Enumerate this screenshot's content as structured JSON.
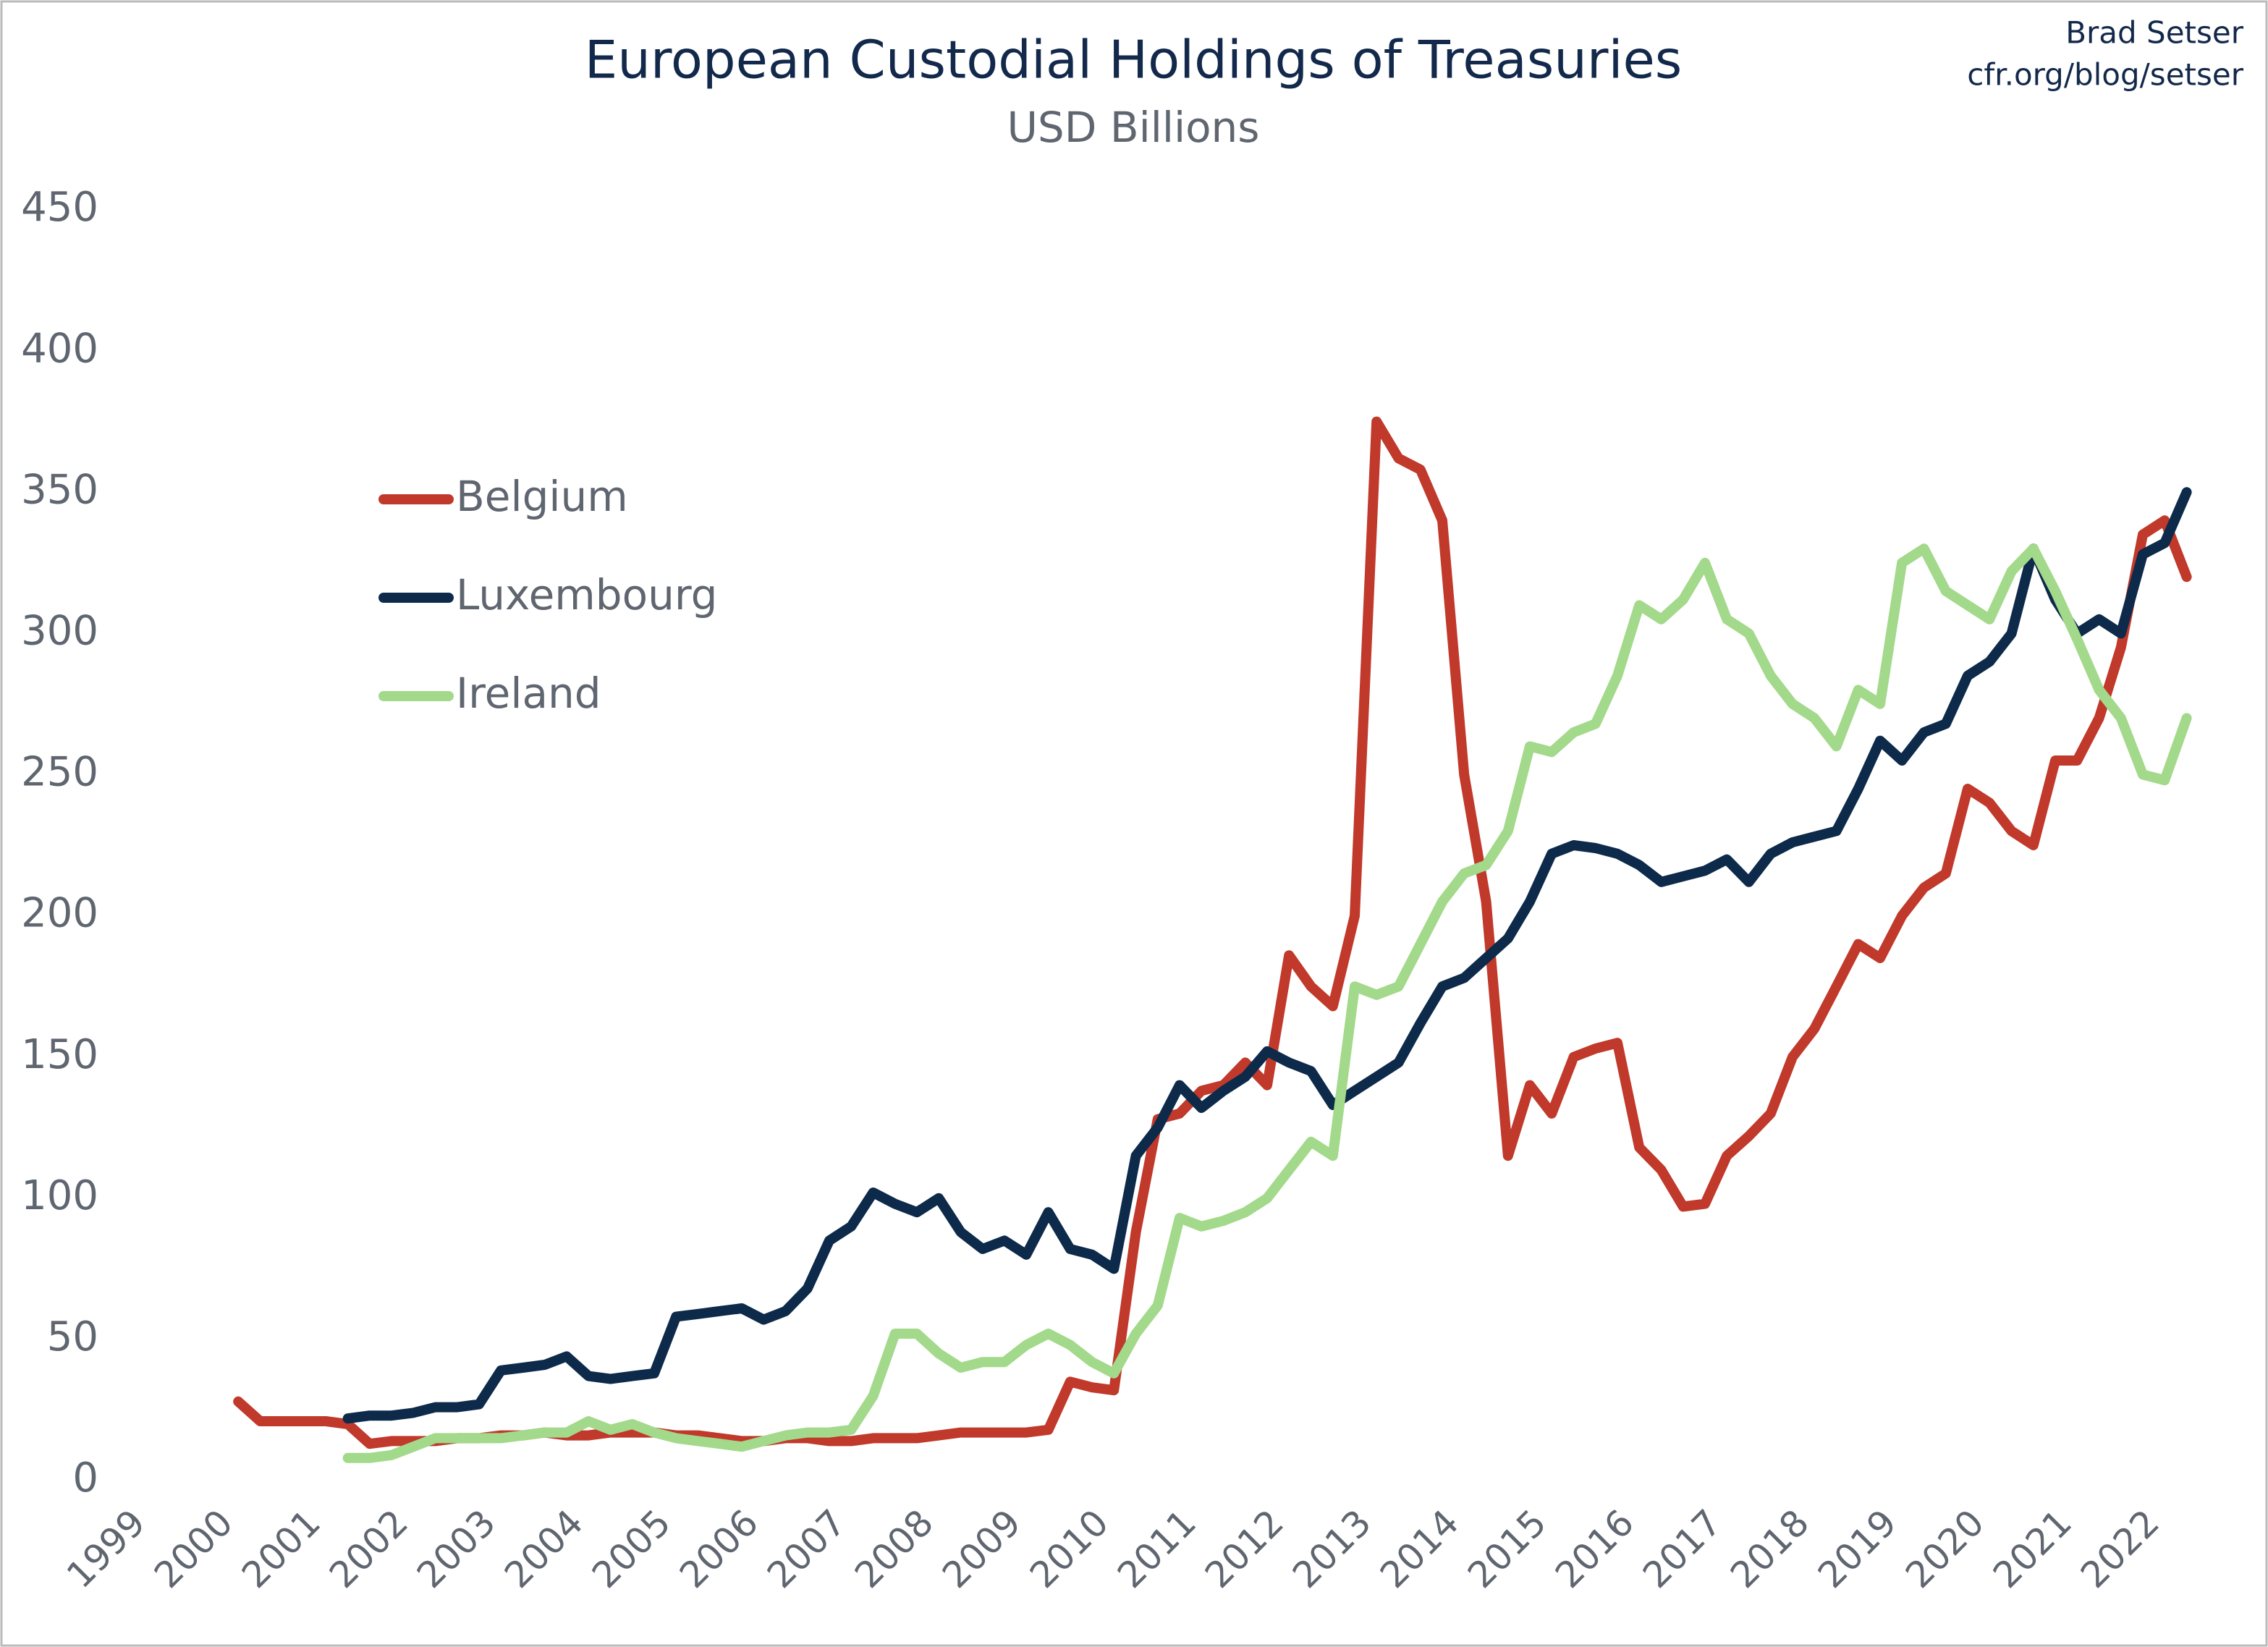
{
  "chart_data": {
    "type": "line",
    "title": "European Custodial Holdings of Treasuries",
    "subtitle": "USD Billions",
    "source": [
      "Brad Setser",
      "cfr.org/blog/setser"
    ],
    "x": [
      2000,
      2000.25,
      2000.5,
      2000.75,
      2001,
      2001.25,
      2001.5,
      2001.75,
      2002,
      2002.25,
      2002.5,
      2002.75,
      2003,
      2003.25,
      2003.5,
      2003.75,
      2004,
      2004.25,
      2004.5,
      2004.75,
      2005,
      2005.25,
      2005.5,
      2005.75,
      2006,
      2006.25,
      2006.5,
      2006.75,
      2007,
      2007.25,
      2007.5,
      2007.75,
      2008,
      2008.25,
      2008.5,
      2008.75,
      2009,
      2009.25,
      2009.5,
      2009.75,
      2010,
      2010.25,
      2010.5,
      2010.75,
      2011,
      2011.25,
      2011.5,
      2011.75,
      2012,
      2012.25,
      2012.5,
      2012.75,
      2013,
      2013.25,
      2013.5,
      2013.75,
      2014,
      2014.25,
      2014.5,
      2014.75,
      2015,
      2015.25,
      2015.5,
      2015.75,
      2016,
      2016.25,
      2016.5,
      2016.75,
      2017,
      2017.25,
      2017.5,
      2017.75,
      2018,
      2018.25,
      2018.5,
      2018.75,
      2019,
      2019.25,
      2019.5,
      2019.75,
      2020,
      2020.25,
      2020.5,
      2020.75,
      2021,
      2021.25,
      2021.5,
      2021.75,
      2022,
      2022.25,
      2022.5
    ],
    "series": [
      {
        "name": "Belgium",
        "color": "#c0392b",
        "values": [
          null,
          28,
          21,
          21,
          21,
          21,
          20,
          13,
          14,
          14,
          14,
          15,
          15,
          16,
          16,
          17,
          16,
          16,
          17,
          17,
          17,
          16,
          16,
          15,
          14,
          14,
          15,
          15,
          14,
          14,
          15,
          15,
          15,
          16,
          17,
          17,
          17,
          17,
          18,
          35,
          33,
          32,
          88,
          128,
          130,
          138,
          140,
          148,
          140,
          186,
          175,
          168,
          200,
          375,
          362,
          358,
          340,
          250,
          205,
          115,
          140,
          130,
          150,
          153,
          155,
          118,
          110,
          97,
          98,
          115,
          122,
          130,
          150,
          160,
          175,
          190,
          185,
          200,
          210,
          215,
          245,
          240,
          230,
          225,
          255,
          255,
          270,
          295,
          335,
          340,
          320
        ]
      },
      {
        "name": "Luxembourg",
        "color": "#0d2a4a",
        "values": [
          null,
          null,
          null,
          null,
          null,
          null,
          22,
          23,
          23,
          24,
          26,
          26,
          27,
          39,
          40,
          41,
          44,
          37,
          36,
          37,
          38,
          58,
          59,
          60,
          61,
          57,
          60,
          68,
          85,
          90,
          102,
          98,
          95,
          100,
          88,
          82,
          85,
          80,
          95,
          82,
          80,
          75,
          115,
          125,
          140,
          132,
          138,
          143,
          152,
          148,
          145,
          133,
          138,
          143,
          148,
          162,
          175,
          178,
          185,
          192,
          205,
          222,
          225,
          224,
          222,
          218,
          212,
          214,
          216,
          220,
          212,
          222,
          226,
          228,
          230,
          245,
          262,
          255,
          265,
          268,
          285,
          290,
          300,
          330,
          312,
          300,
          305,
          300,
          328,
          332,
          350
        ]
      },
      {
        "name": "Ireland",
        "color": "#a3d98a",
        "values": [
          null,
          null,
          null,
          null,
          null,
          null,
          8,
          8,
          9,
          12,
          15,
          15,
          15,
          15,
          16,
          17,
          17,
          21,
          18,
          20,
          17,
          15,
          14,
          13,
          12,
          14,
          16,
          17,
          17,
          18,
          30,
          52,
          52,
          45,
          40,
          42,
          42,
          48,
          52,
          48,
          42,
          38,
          52,
          62,
          93,
          90,
          92,
          95,
          100,
          110,
          120,
          115,
          175,
          172,
          175,
          190,
          205,
          215,
          218,
          230,
          260,
          258,
          265,
          268,
          285,
          310,
          305,
          312,
          325,
          305,
          300,
          285,
          275,
          270,
          260,
          280,
          275,
          325,
          330,
          315,
          310,
          305,
          322,
          330,
          315,
          298,
          280,
          270,
          250,
          248,
          270
        ]
      }
    ],
    "xlim": [
      1999,
      2023
    ],
    "xticks": [
      1999,
      2000,
      2001,
      2002,
      2003,
      2004,
      2005,
      2006,
      2007,
      2008,
      2009,
      2010,
      2011,
      2012,
      2013,
      2014,
      2015,
      2016,
      2017,
      2018,
      2019,
      2020,
      2021,
      2022
    ],
    "ylim": [
      0,
      450
    ],
    "yticks": [
      0,
      50,
      100,
      150,
      200,
      250,
      300,
      350,
      400,
      450
    ],
    "legend": "left",
    "grid": false
  }
}
